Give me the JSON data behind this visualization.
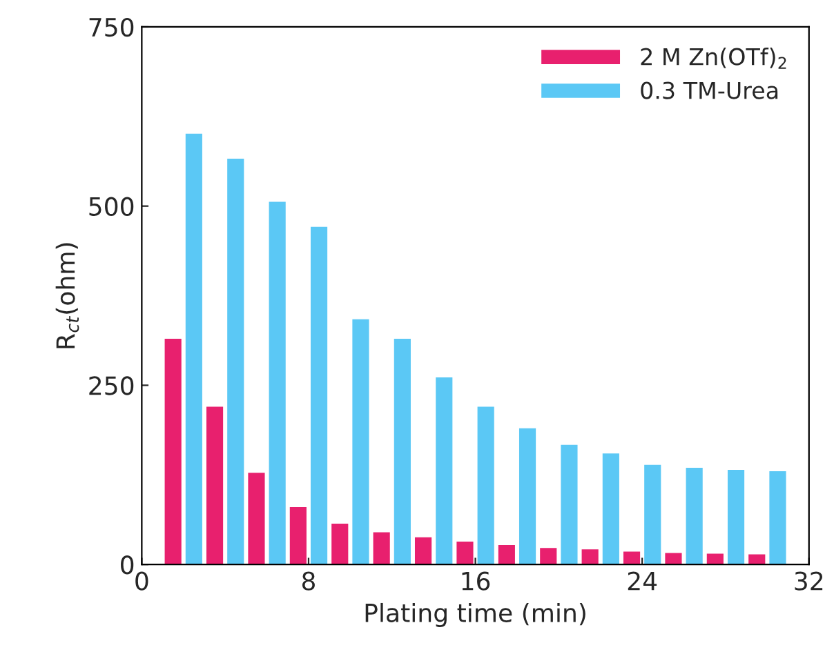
{
  "chart_data": {
    "type": "bar",
    "xlabel": "Plating time (min)",
    "ylabel": "R$_{ct}$(ohm)",
    "xlim": [
      0,
      32
    ],
    "xticks": [
      0,
      8,
      16,
      24,
      32
    ],
    "ylim": [
      0,
      750
    ],
    "yticks": [
      0,
      250,
      500,
      750
    ],
    "grid": false,
    "legend": "top right",
    "series": [
      {
        "name": "2 M Zn(OTf)$_{2}$",
        "color": "#e8206e",
        "x": [
          1.5,
          3.5,
          5.5,
          7.5,
          9.5,
          11.5,
          13.5,
          15.5,
          17.5,
          19.5,
          21.5,
          23.5,
          25.5,
          27.5,
          29.5
        ],
        "values": [
          315,
          220,
          128,
          80,
          57,
          45,
          38,
          32,
          27,
          23,
          21,
          18,
          16,
          15,
          14
        ]
      },
      {
        "name": "0.3 TM-Urea",
        "color": "#5bc8f5",
        "x": [
          2.5,
          4.5,
          6.5,
          8.5,
          10.5,
          12.5,
          14.5,
          16.5,
          18.5,
          20.5,
          22.5,
          24.5,
          26.5,
          28.5,
          30.5
        ],
        "values": [
          601,
          566,
          506,
          471,
          342,
          315,
          261,
          220,
          190,
          167,
          155,
          139,
          135,
          132,
          130
        ]
      }
    ]
  }
}
